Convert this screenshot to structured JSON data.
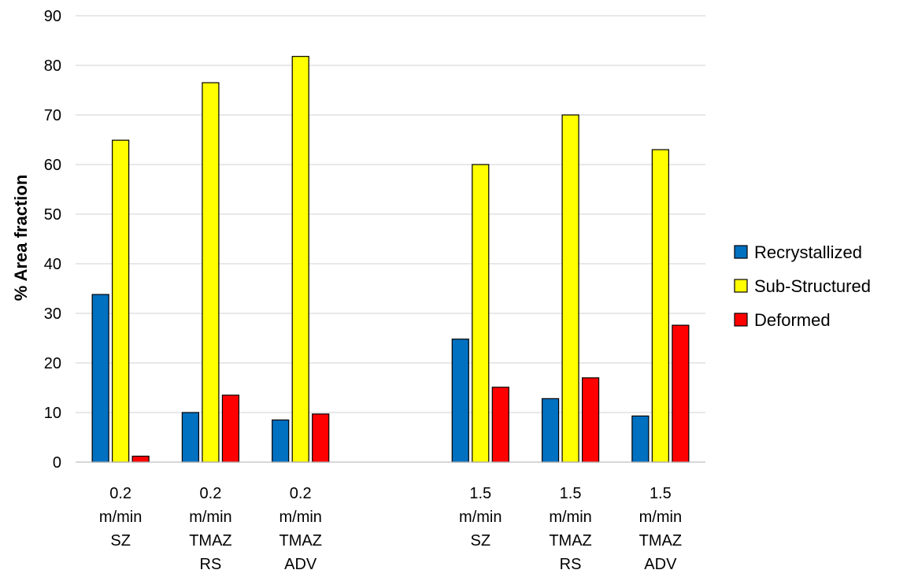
{
  "chart_data": {
    "type": "bar",
    "title": "",
    "xlabel": "",
    "ylabel": "% Area fraction",
    "ylim": [
      0,
      90
    ],
    "yticks": [
      0,
      10,
      20,
      30,
      40,
      50,
      60,
      70,
      80,
      90
    ],
    "grid": true,
    "legend_position": "right",
    "categories": [
      [
        "0.2",
        "m/min",
        "SZ"
      ],
      [
        "0.2",
        "m/min",
        "TMAZ",
        "RS"
      ],
      [
        "0.2",
        "m/min",
        "TMAZ",
        "ADV"
      ],
      [
        "",
        "",
        ""
      ],
      [
        "1.5",
        "m/min",
        "SZ"
      ],
      [
        "1.5",
        "m/min",
        "TMAZ",
        "RS"
      ],
      [
        "1.5",
        "m/min",
        "TMAZ",
        "ADV"
      ]
    ],
    "series": [
      {
        "name": "Recrystallized",
        "color": "#0070c0",
        "values": [
          33.8,
          10,
          8.5,
          null,
          24.8,
          12.8,
          9.3
        ]
      },
      {
        "name": "Sub-Structured",
        "color": "#ffff00",
        "values": [
          64.9,
          76.5,
          81.8,
          null,
          60,
          70,
          63
        ]
      },
      {
        "name": "Deformed",
        "color": "#ff0000",
        "values": [
          1.2,
          13.5,
          9.7,
          null,
          15.1,
          17,
          27.6
        ]
      }
    ]
  }
}
